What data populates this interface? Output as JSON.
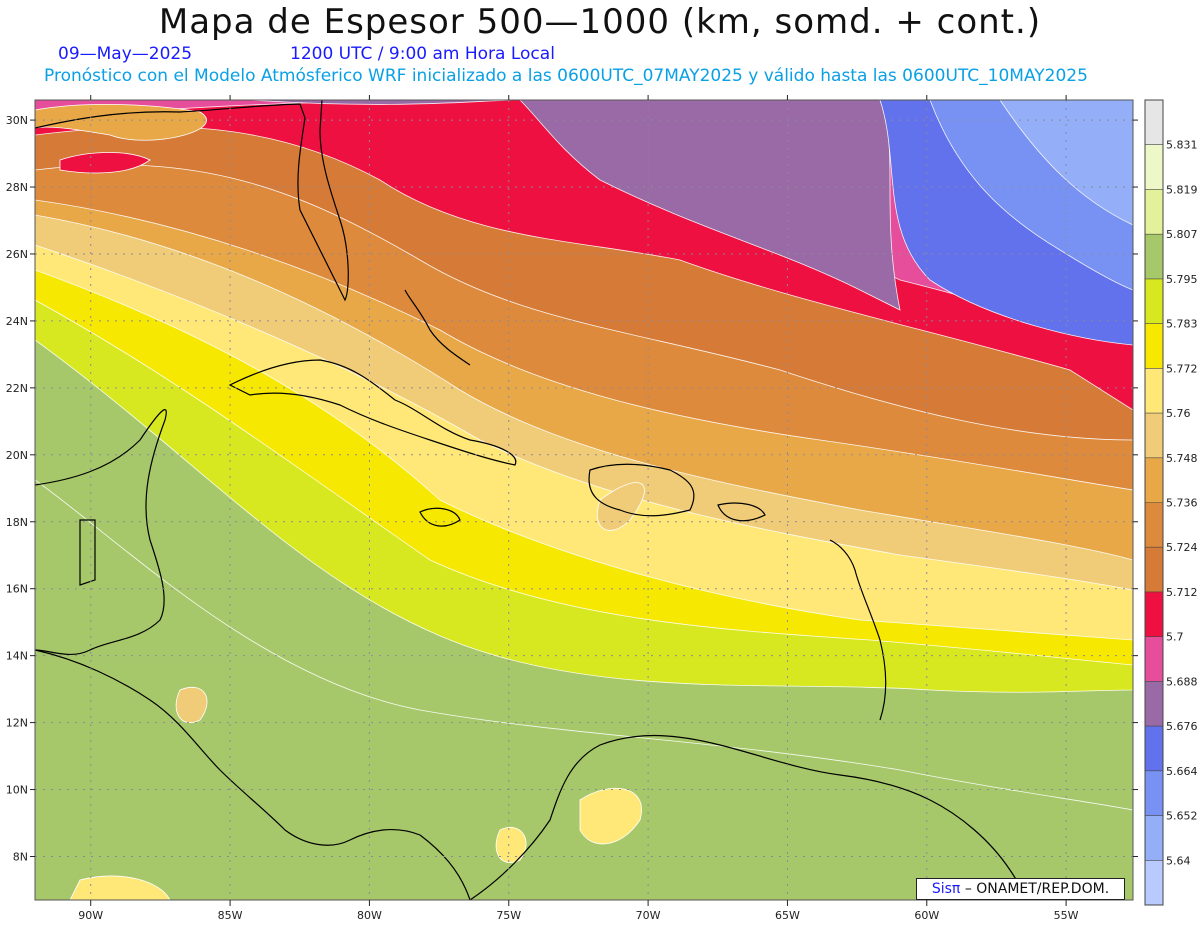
{
  "title": "Mapa de Espesor 500—1000 (km, somd. + cont.)",
  "subtitle": {
    "date": "09—May—2025",
    "time": "1200 UTC / 9:00 am Hora Local",
    "model": "Pronóstico con el Modelo Atmósferico WRF inicializado a las 0600UTC_07MAY2025 y válido hasta las  0600UTC_10MAY2025"
  },
  "credit": {
    "brand": "Sisπ",
    "text": "– ONAMET/REP.DOM."
  },
  "map": {
    "lon_range": [
      -92,
      -52.6
    ],
    "lat_range": [
      6.7,
      30.6
    ],
    "lon_labels": [
      "90W",
      "85W",
      "80W",
      "75W",
      "70W",
      "65W",
      "60W",
      "55W"
    ],
    "lat_labels": [
      "30N",
      "28N",
      "26N",
      "24N",
      "22N",
      "20N",
      "18N",
      "16N",
      "14N",
      "12N",
      "10N",
      "8N"
    ]
  },
  "colorbar": {
    "labels": [
      "5.831",
      "5.819",
      "5.807",
      "5.795",
      "5.783",
      "5.772",
      "5.76",
      "5.748",
      "5.736",
      "5.724",
      "5.712",
      "5.7",
      "5.688",
      "5.676",
      "5.664",
      "5.652",
      "5.64"
    ],
    "colors": [
      "#e6e6e6",
      "#eef7c8",
      "#e3f29a",
      "#a6c86a",
      "#d8e820",
      "#f6e800",
      "#ffe878",
      "#f0cc78",
      "#e8a848",
      "#de8a3c",
      "#d67a38",
      "#ee1040",
      "#e64e9c",
      "#9a6aa6",
      "#6272ec",
      "#7892f4",
      "#94aef8",
      "#b8caff"
    ]
  },
  "bands": [
    {
      "color": "#a6c86a",
      "value": "5.795"
    },
    {
      "color": "#d8e820",
      "value": "5.783"
    },
    {
      "color": "#f6e800",
      "value": "5.772"
    },
    {
      "color": "#ffe878",
      "value": "5.76"
    },
    {
      "color": "#f0cc78",
      "value": "5.748"
    },
    {
      "color": "#e8a848",
      "value": "5.736"
    },
    {
      "color": "#de8a3c",
      "value": "5.724"
    },
    {
      "color": "#d67a38",
      "value": "5.712"
    },
    {
      "color": "#ee1040",
      "value": "5.7"
    },
    {
      "color": "#e64e9c",
      "value": "5.688"
    },
    {
      "color": "#9a6aa6",
      "value": "5.676"
    },
    {
      "color": "#6272ec",
      "value": "5.664"
    },
    {
      "color": "#7892f4",
      "value": "5.652"
    },
    {
      "color": "#94aef8",
      "value": "5.64"
    }
  ]
}
